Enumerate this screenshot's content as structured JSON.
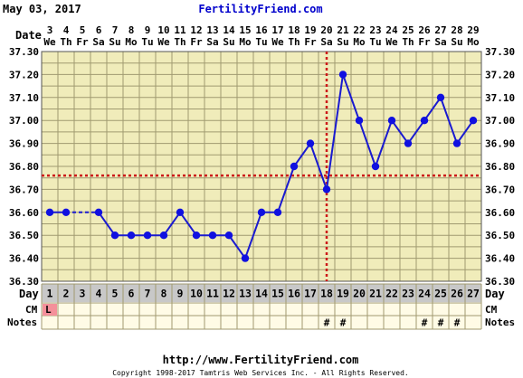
{
  "header": {
    "date": "May 03, 2017",
    "site": "FertilityFriend.com"
  },
  "footer": {
    "url": "http://www.FertilityFriend.com",
    "copyright": "Copyright 1998-2017 Tamtris Web Services Inc. - All Rights Reserved."
  },
  "row_labels": {
    "date": "Date",
    "day": "Day",
    "cm": "CM",
    "notes": "Notes"
  },
  "colors": {
    "background": "#ffffff",
    "plot_bg": "#f0ecba",
    "grid": "#a09a70",
    "line": "#1a1ad0",
    "point": "#1010e0",
    "coverline": "#cc1a1a",
    "ovulation_line": "#cc1a1a",
    "day_row_bg": "#c8c8c8",
    "cm_row_bg": "#fffbe6",
    "cm_L_bg": "#f4909a",
    "header_site": "#0000cc"
  },
  "chart_data": {
    "type": "line",
    "dates": [
      "3",
      "4",
      "5",
      "6",
      "7",
      "8",
      "9",
      "10",
      "11",
      "12",
      "13",
      "14",
      "15",
      "16",
      "17",
      "18",
      "19",
      "20",
      "21",
      "22",
      "23",
      "24",
      "25",
      "26",
      "27",
      "28",
      "29"
    ],
    "weekdays": [
      "We",
      "Th",
      "Fr",
      "Sa",
      "Su",
      "Mo",
      "Tu",
      "We",
      "Th",
      "Fr",
      "Sa",
      "Su",
      "Mo",
      "Tu",
      "We",
      "Th",
      "Fr",
      "Sa",
      "Su",
      "Mo",
      "Tu",
      "We",
      "Th",
      "Fr",
      "Sa",
      "Su",
      "Mo"
    ],
    "days": [
      "1",
      "2",
      "3",
      "4",
      "5",
      "6",
      "7",
      "8",
      "9",
      "10",
      "11",
      "12",
      "13",
      "14",
      "15",
      "16",
      "17",
      "18",
      "19",
      "20",
      "21",
      "22",
      "23",
      "24",
      "25",
      "26",
      "27"
    ],
    "temperatures": [
      36.6,
      36.6,
      null,
      36.6,
      36.5,
      36.5,
      36.5,
      36.5,
      36.6,
      36.5,
      36.5,
      36.5,
      36.4,
      36.6,
      36.6,
      36.8,
      36.9,
      36.7,
      37.2,
      37.0,
      36.8,
      37.0,
      36.9,
      37.0,
      37.1,
      36.9,
      37.0
    ],
    "dashed_segment": [
      2,
      4
    ],
    "y_ticks": [
      "36.30",
      "36.40",
      "36.50",
      "36.60",
      "36.70",
      "36.80",
      "36.90",
      "37.00",
      "37.10",
      "37.20",
      "37.30"
    ],
    "ylim": [
      36.3,
      37.3
    ],
    "coverline": 36.76,
    "ovulation_day": 18,
    "cm": {
      "1": "L"
    },
    "notes": [
      "18",
      "19",
      "24",
      "25",
      "26"
    ],
    "notes_symbol": "#",
    "grid": true
  }
}
